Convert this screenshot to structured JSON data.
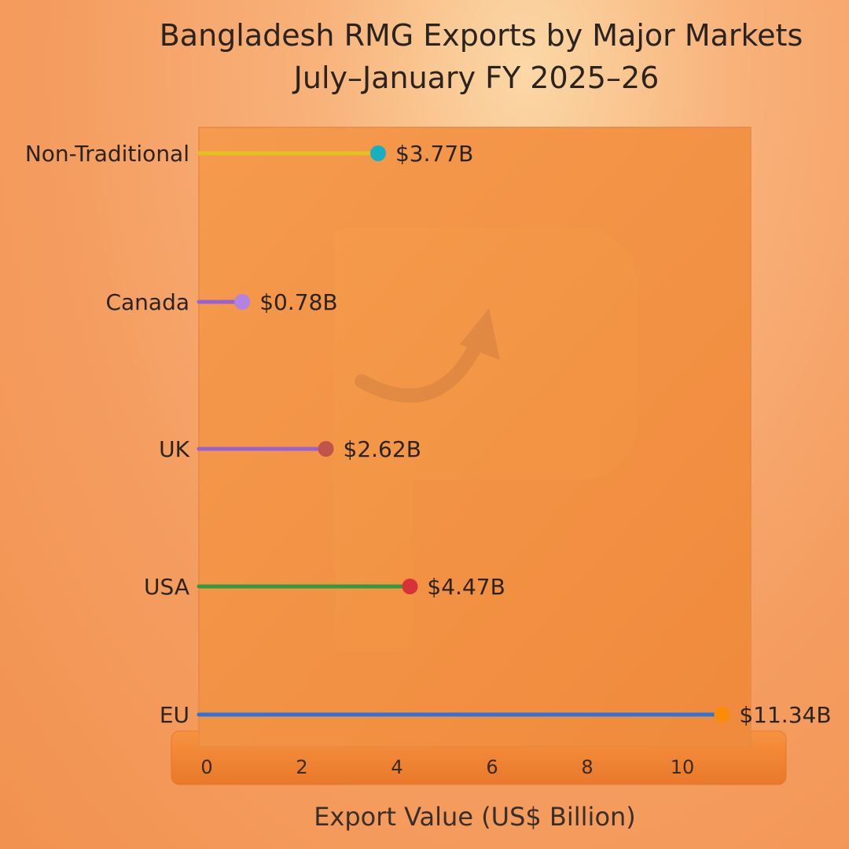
{
  "chart_data": {
    "type": "lollipop",
    "title_lines": [
      "Bangladesh RMG Exports by Major Markets",
      "July–January FY 2025–26"
    ],
    "xlabel": "Export Value (US$ Billion)",
    "ylabel": "",
    "xlim": [
      -0.2,
      11.5
    ],
    "xticks": [
      0,
      2,
      4,
      6,
      8,
      10
    ],
    "categories": [
      "Non-Traditional",
      "Canada",
      "UK",
      "USA",
      "EU"
    ],
    "values": [
      3.77,
      0.78,
      2.62,
      4.47,
      11.34
    ],
    "value_labels": [
      "$3.77B",
      "$0.78B",
      "$2.62B",
      "$4.47B",
      "$11.34B"
    ],
    "line_colors": [
      "#e4c21d",
      "#9a62d0",
      "#9a62d0",
      "#2f9a3e",
      "#2d74d6"
    ],
    "dot_colors": [
      "#17b0c2",
      "#b283e0",
      "#c0544a",
      "#d8313a",
      "#fb8c0a"
    ],
    "grid": false,
    "legend": "none"
  }
}
